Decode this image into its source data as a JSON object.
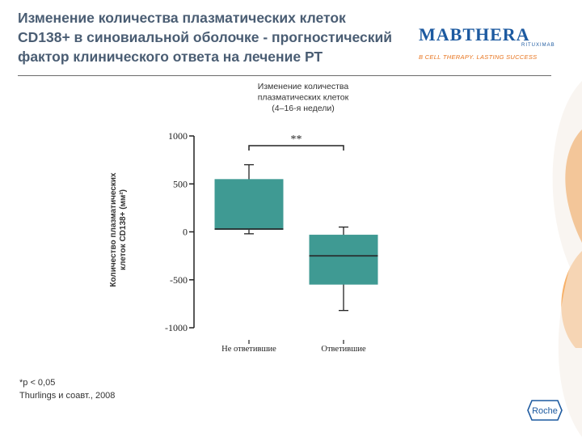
{
  "header": {
    "title_lines": [
      "Изменение количества плазматических клеток",
      "CD138+ в синовиальной оболочке - прогностический",
      "фактор клинического ответа на лечение РТ"
    ],
    "logo_name": "MABTHERA",
    "logo_sub": "RITUXIMAB",
    "logo_tagline": "B CELL THERAPY. LASTING SUCCESS",
    "brand_color": "#1d5aa0",
    "accent_color": "#e8741e"
  },
  "chart_data": {
    "type": "box",
    "title_lines": [
      "Изменение количества",
      "плазматических клеток",
      "(4–16-я недели)"
    ],
    "ylabel_lines": [
      "Количество плазматических",
      "клеток CD138+ (мм²)"
    ],
    "categories": [
      "Не ответившие",
      "Ответившие"
    ],
    "ylim": [
      -1000,
      1000
    ],
    "yticks": [
      1000,
      500,
      0,
      -500,
      -1000
    ],
    "boxes": [
      {
        "category": "Не ответившие",
        "whisker_low": -20,
        "q1": 30,
        "median": 30,
        "q3": 550,
        "whisker_high": 700
      },
      {
        "category": "Ответившие",
        "whisker_low": -820,
        "q1": -550,
        "median": -250,
        "q3": -30,
        "whisker_high": 50
      }
    ],
    "box_color": "#3f9a93",
    "significance": "**"
  },
  "footnote": {
    "lines": [
      "*p < 0,05",
      "Thurlings и соавт., 2008"
    ]
  },
  "roche_label": "Roche"
}
